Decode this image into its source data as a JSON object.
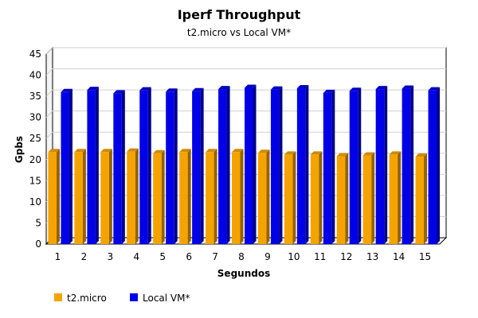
{
  "chart_data": {
    "type": "bar",
    "title": "Iperf Throughput",
    "subtitle": "t2.micro vs Local VM*",
    "xlabel": "Segundos",
    "ylabel": "Gpbs",
    "ylim": [
      0,
      45
    ],
    "yticks": [
      "0",
      "5",
      "10",
      "15",
      "20",
      "25",
      "30",
      "35",
      "40",
      "45"
    ],
    "grid": true,
    "legend_position": "bottom-left",
    "categories": [
      "1",
      "2",
      "3",
      "4",
      "5",
      "6",
      "7",
      "8",
      "9",
      "10",
      "11",
      "12",
      "13",
      "14",
      "15"
    ],
    "series": [
      {
        "name": "t2.micro",
        "color": "#f5a300",
        "values": [
          21.8,
          21.8,
          21.8,
          21.9,
          21.5,
          21.8,
          21.8,
          21.8,
          21.6,
          21.2,
          21.2,
          20.8,
          21.0,
          21.2,
          20.7
        ]
      },
      {
        "name": "Local VM*",
        "color": "#0000e8",
        "values": [
          36.0,
          36.5,
          35.7,
          36.4,
          36.1,
          36.2,
          36.7,
          37.0,
          36.6,
          36.9,
          35.8,
          36.3,
          36.7,
          36.8,
          36.4
        ]
      }
    ]
  }
}
